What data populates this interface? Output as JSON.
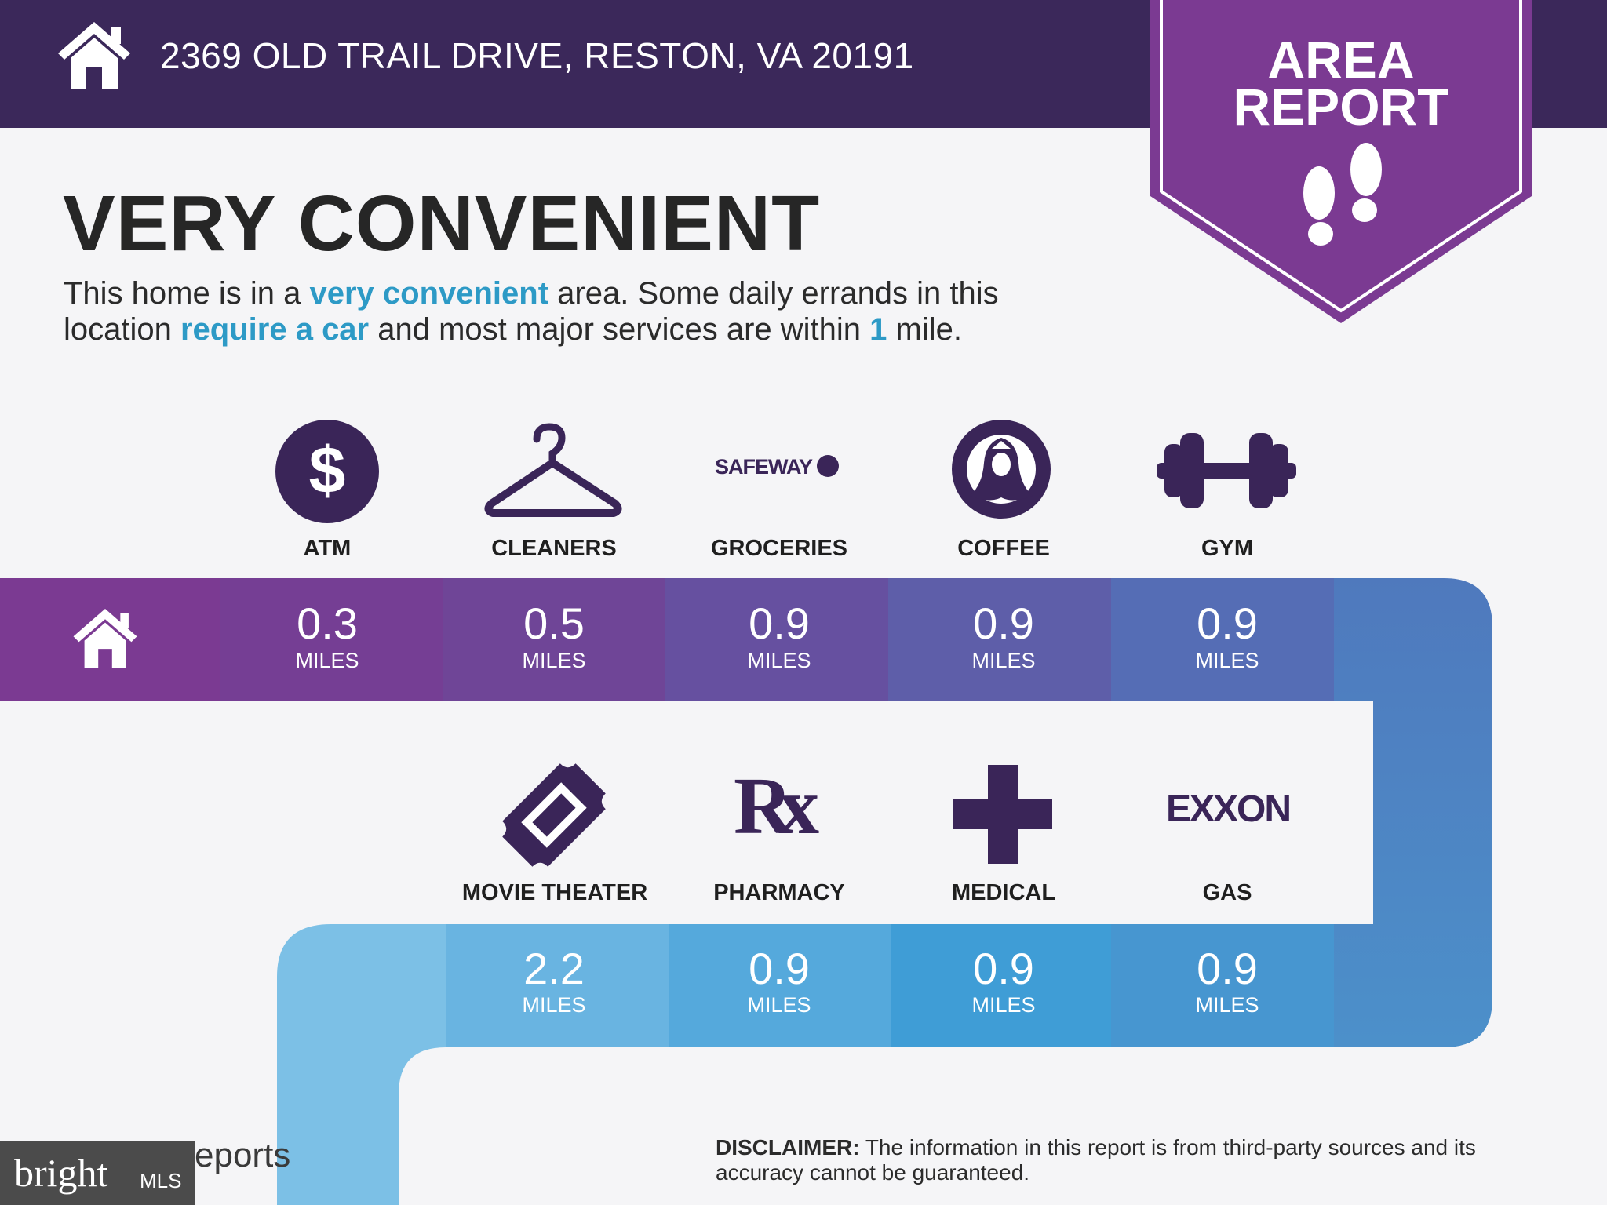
{
  "header": {
    "address": "2369 OLD TRAIL DRIVE, RESTON, VA 20191",
    "house_icon": "house-icon"
  },
  "badge": {
    "line1": "AREA",
    "line2": "REPORT",
    "icon": "footprints-icon"
  },
  "headline": "VERY CONVENIENT",
  "description": {
    "line1_a": "This home is in a ",
    "line1_b": "very convenient",
    "line1_c": " area. Some daily errands in this",
    "line2_a": "location ",
    "line2_b": "require a car",
    "line2_c": " and most major services are within ",
    "line2_d": "1",
    "line2_e": " mile."
  },
  "row1": [
    {
      "label": "ATM",
      "value": "0.3",
      "unit": "MILES",
      "icon": "dollar-icon"
    },
    {
      "label": "CLEANERS",
      "value": "0.5",
      "unit": "MILES",
      "icon": "hanger-icon"
    },
    {
      "label": "GROCERIES",
      "value": "0.9",
      "unit": "MILES",
      "icon": "safeway-logo",
      "logo_text": "SAFEWAY"
    },
    {
      "label": "COFFEE",
      "value": "0.9",
      "unit": "MILES",
      "icon": "starbucks-logo"
    },
    {
      "label": "GYM",
      "value": "0.9",
      "unit": "MILES",
      "icon": "dumbbell-icon"
    }
  ],
  "row2": [
    {
      "label": "MOVIE THEATER",
      "value": "2.2",
      "unit": "MILES",
      "icon": "ticket-icon"
    },
    {
      "label": "PHARMACY",
      "value": "0.9",
      "unit": "MILES",
      "icon": "rx-icon",
      "logo_text": "Rx"
    },
    {
      "label": "MEDICAL",
      "value": "0.9",
      "unit": "MILES",
      "icon": "medical-cross-icon"
    },
    {
      "label": "GAS",
      "value": "0.9",
      "unit": "MILES",
      "icon": "exxon-logo",
      "logo_text": "EXXON"
    }
  ],
  "disclaimer": {
    "label": "DISCLAIMER:",
    "text": " The information in this report is from third-party sources and its accuracy cannot be guaranteed."
  },
  "branding": {
    "footer_text": "eports",
    "watermark": "bright",
    "watermark_suffix": "MLS"
  },
  "colors": {
    "header": "#3b285a",
    "badge": "#7b3a92",
    "accent_text": "#2d9ac6",
    "icon": "#3a2558"
  }
}
